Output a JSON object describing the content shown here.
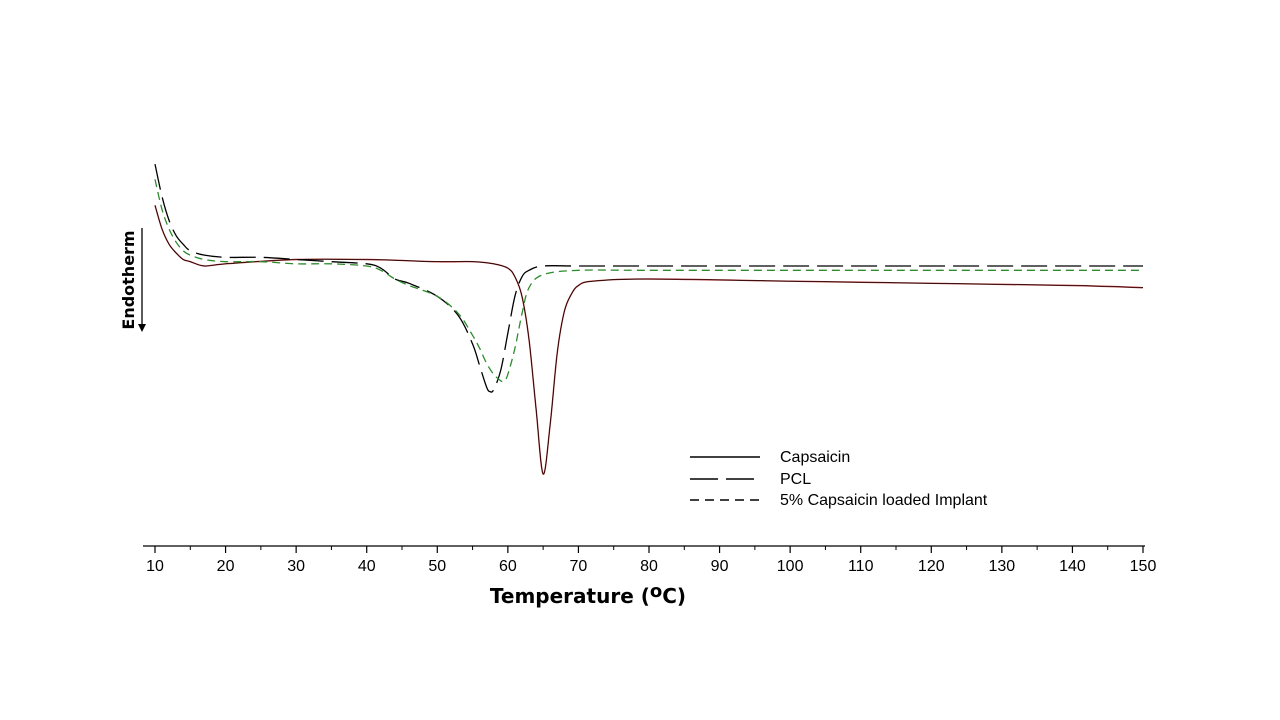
{
  "chart_data": {
    "type": "line",
    "title": "",
    "xlabel": "Temperature (",
    "xlabel_unit_super": "o",
    "xlabel_unit_tail": "C)",
    "ylabel": "Endotherm",
    "xlim": [
      10,
      150
    ],
    "ylim": [
      -1.0,
      0.8
    ],
    "x_ticks": [
      10,
      20,
      30,
      40,
      50,
      60,
      70,
      80,
      90,
      100,
      110,
      120,
      130,
      140,
      150
    ],
    "grid": false,
    "y_axis_shown": false,
    "legend_position": "bottom-right",
    "series": [
      {
        "name": "Capsaicin",
        "line_style": "solid",
        "color": "#000000",
        "overlay_color": "#a52a2a",
        "x": [
          10,
          11,
          12,
          13,
          14,
          15,
          17,
          20,
          30,
          40,
          50,
          55,
          58,
          60,
          61,
          62,
          63,
          64,
          65,
          66,
          67,
          68,
          69,
          70,
          72,
          80,
          100,
          120,
          140,
          150
        ],
        "y": [
          0.36,
          0.25,
          0.18,
          0.14,
          0.11,
          0.1,
          0.08,
          0.09,
          0.11,
          0.11,
          0.1,
          0.1,
          0.09,
          0.07,
          0.03,
          -0.06,
          -0.26,
          -0.58,
          -0.88,
          -0.65,
          -0.32,
          -0.13,
          -0.05,
          -0.01,
          0.01,
          0.02,
          0.01,
          0.0,
          -0.01,
          -0.02
        ]
      },
      {
        "name": "PCL",
        "line_style": "long-dash",
        "color": "#000000",
        "x": [
          10,
          11,
          12,
          13,
          14,
          15,
          17,
          20,
          25,
          30,
          35,
          40,
          42,
          44,
          46,
          50,
          53,
          55,
          56,
          57,
          57.5,
          58,
          59,
          60,
          61,
          62,
          63,
          65,
          70,
          80,
          100,
          120,
          140,
          150
        ],
        "y": [
          0.55,
          0.4,
          0.29,
          0.22,
          0.18,
          0.15,
          0.13,
          0.12,
          0.12,
          0.11,
          0.1,
          0.09,
          0.07,
          0.02,
          0.0,
          -0.06,
          -0.15,
          -0.28,
          -0.38,
          -0.48,
          -0.5,
          -0.49,
          -0.4,
          -0.23,
          -0.06,
          0.03,
          0.06,
          0.08,
          0.08,
          0.08,
          0.08,
          0.08,
          0.08,
          0.08
        ]
      },
      {
        "name": "5% Capsaicin loaded Implant",
        "line_style": "short-dash",
        "color": "#2e8b2e",
        "x": [
          10,
          11,
          12,
          13,
          14,
          15,
          17,
          20,
          25,
          30,
          35,
          40,
          42,
          44,
          46,
          50,
          53,
          55,
          56,
          57,
          58,
          59,
          59.5,
          60,
          61,
          62,
          63,
          65,
          70,
          80,
          100,
          120,
          140,
          150
        ],
        "y": [
          0.48,
          0.34,
          0.25,
          0.19,
          0.15,
          0.13,
          0.11,
          0.1,
          0.1,
          0.09,
          0.09,
          0.08,
          0.06,
          0.02,
          -0.01,
          -0.06,
          -0.14,
          -0.24,
          -0.3,
          -0.37,
          -0.42,
          -0.45,
          -0.45,
          -0.42,
          -0.3,
          -0.14,
          -0.02,
          0.04,
          0.06,
          0.06,
          0.06,
          0.06,
          0.06,
          0.06
        ]
      }
    ]
  }
}
